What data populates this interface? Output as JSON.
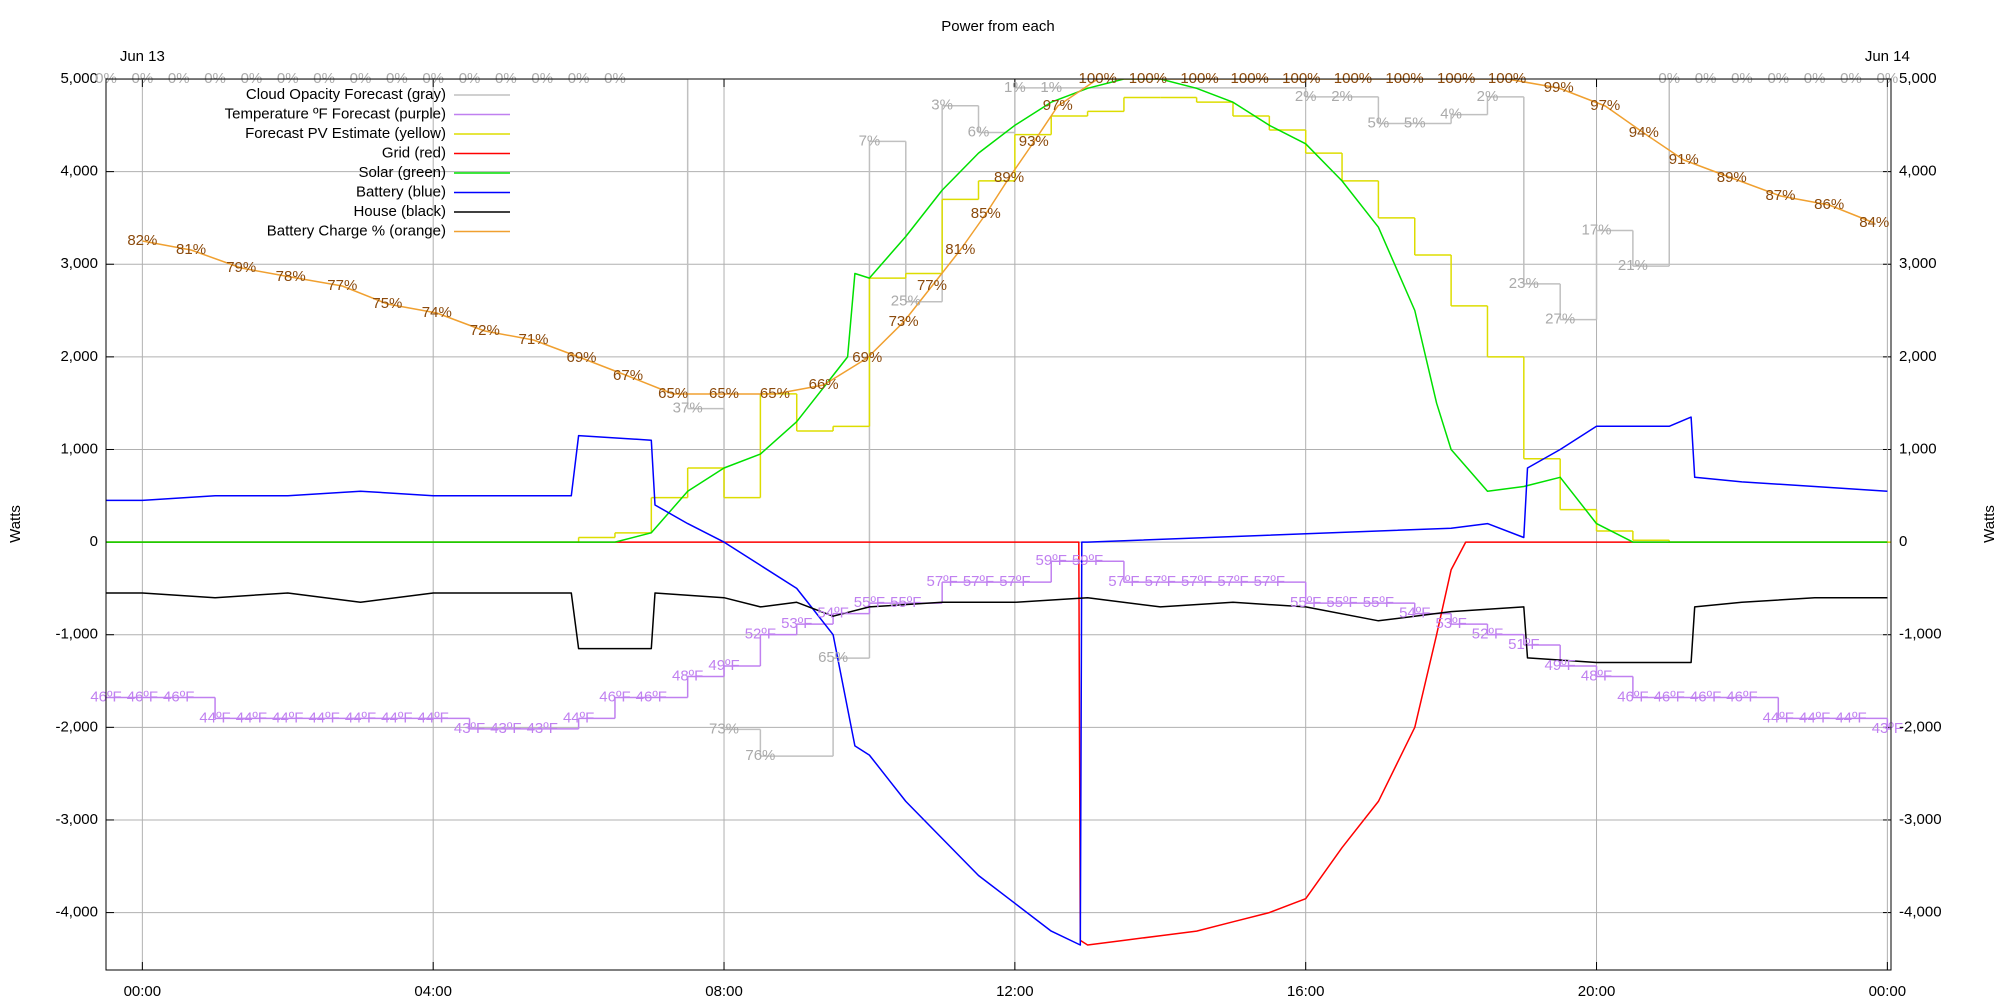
{
  "chart_data": {
    "type": "line",
    "title": "Power from each",
    "y_label": "Watts",
    "y2_label": "Watts",
    "xlim": [
      -0.5,
      24.05
    ],
    "ylim": [
      -4620,
      5000
    ],
    "xticks": [
      {
        "value": 0,
        "label": "00:00"
      },
      {
        "value": 4,
        "label": "04:00"
      },
      {
        "value": 8,
        "label": "08:00"
      },
      {
        "value": 12,
        "label": "12:00"
      },
      {
        "value": 16,
        "label": "16:00"
      },
      {
        "value": 20,
        "label": "20:00"
      },
      {
        "value": 24,
        "label": "00:00"
      }
    ],
    "yticks": [
      {
        "value": -4000,
        "label": "-4,000"
      },
      {
        "value": -3000,
        "label": "-3,000"
      },
      {
        "value": -2000,
        "label": "-2,000"
      },
      {
        "value": -1000,
        "label": "-1,000"
      },
      0,
      {
        "value": 1000,
        "label": "1,000"
      },
      {
        "value": 2000,
        "label": "2,000"
      },
      {
        "value": 3000,
        "label": "3,000"
      },
      {
        "value": 4000,
        "label": "4,000"
      },
      {
        "value": 5000,
        "label": "5,000"
      }
    ],
    "grid": true,
    "legend": "upper left",
    "annotations": [
      {
        "text": "Jun 13",
        "x": 0
      },
      {
        "text": "Jun 14",
        "x": 24
      }
    ],
    "series": [
      {
        "name": "Cloud Opacity Forecast (gray)",
        "color": "#c0c0c0",
        "label_color": "#aaaaaa",
        "step": true,
        "ylim": [
          100,
          0
        ],
        "x": [
          -0.5,
          0,
          0.5,
          1,
          1.5,
          2,
          2.5,
          3,
          3.5,
          4,
          4.5,
          5,
          5.5,
          6,
          6.5,
          7.5,
          8,
          8.5,
          9.5,
          10,
          10.5,
          11,
          11.5,
          12,
          12.5,
          16,
          16.5,
          17,
          17.5,
          18,
          18.5,
          19,
          19.5,
          20,
          20.5,
          21,
          21.5,
          22,
          22.5,
          23,
          23.5,
          24
        ],
        "values": [
          0,
          0,
          0,
          0,
          0,
          0,
          0,
          0,
          0,
          0,
          0,
          0,
          0,
          0,
          0,
          37,
          73,
          76,
          65,
          7,
          25,
          3,
          6,
          1,
          1,
          2,
          2,
          5,
          5,
          4,
          2,
          23,
          27,
          17,
          21,
          0,
          0,
          0,
          0,
          0,
          0,
          0
        ],
        "value_labels": [
          "0%",
          "0%",
          "0%",
          "0%",
          "0%",
          "0%",
          "0%",
          "0%",
          "0%",
          "0%",
          "0%",
          "0%",
          "0%",
          "0%",
          "0%",
          "37%",
          "73%",
          "76%",
          "65%",
          "7%",
          "25%",
          "3%",
          "6%",
          "1%",
          "1%",
          "2%",
          "2%",
          "5%",
          "5%",
          "4%",
          "2%",
          "23%",
          "27%",
          "17%",
          "21%",
          "0%",
          "0%",
          "0%",
          "0%",
          "0%",
          "0%",
          "0%"
        ]
      },
      {
        "name": "Temperature ºF Forecast (purple)",
        "color": "#c080f0",
        "label_color": "#c080f0",
        "step": true,
        "ylim": [
          20,
          105
        ],
        "x": [
          -0.5,
          0,
          0.5,
          1,
          1.5,
          2,
          2.5,
          3,
          3.5,
          4,
          4.5,
          5,
          5.5,
          6,
          6.5,
          7,
          7.5,
          8,
          8.5,
          9,
          9.5,
          10,
          10.5,
          11,
          11.5,
          12,
          12.5,
          13,
          13.5,
          14,
          14.5,
          15,
          15.5,
          16,
          16.5,
          17,
          17.5,
          18,
          18.5,
          19,
          19.5,
          20,
          20.5,
          21,
          21.5,
          22,
          22.5,
          23,
          23.5,
          24
        ],
        "values": [
          46,
          46,
          46,
          44,
          44,
          44,
          44,
          44,
          44,
          44,
          43,
          43,
          43,
          44,
          46,
          46,
          48,
          49,
          52,
          53,
          54,
          55,
          55,
          57,
          57,
          57,
          59,
          59,
          57,
          57,
          57,
          57,
          57,
          55,
          55,
          55,
          54,
          53,
          52,
          51,
          49,
          48,
          46,
          46,
          46,
          46,
          44,
          44,
          44,
          43
        ],
        "value_labels": [
          "46ºF",
          "46ºF",
          "46ºF",
          "44ºF",
          "44ºF",
          "44ºF",
          "44ºF",
          "44ºF",
          "44ºF",
          "44ºF",
          "43ºF",
          "43ºF",
          "43ºF",
          "44ºF",
          "46ºF",
          "46ºF",
          "48ºF",
          "49ºF",
          "52ºF",
          "53ºF",
          "54ºF",
          "55ºF",
          "55ºF",
          "57ºF",
          "57ºF",
          "57ºF",
          "59ºF",
          "59ºF",
          "57ºF",
          "57ºF",
          "57ºF",
          "57ºF",
          "57ºF",
          "55ºF",
          "55ºF",
          "55ºF",
          "54ºF",
          "53ºF",
          "52ºF",
          "51ºF",
          "49ºF",
          "48ºF",
          "46ºF",
          "46ºF",
          "46ºF",
          "46ºF",
          "44ºF",
          "44ºF",
          "44ºF",
          "43ºF"
        ]
      },
      {
        "name": "Forecast PV Estimate (yellow)",
        "color": "#dddd00",
        "step": true,
        "x": [
          -0.5,
          6,
          6.5,
          7,
          7.5,
          8,
          8.5,
          9,
          9.5,
          10,
          10.5,
          11,
          11.5,
          12,
          12.5,
          13,
          13.5,
          14,
          14.5,
          15,
          15.5,
          16,
          16.5,
          17,
          17.5,
          18,
          18.5,
          19,
          19.5,
          20,
          20.5,
          21
        ],
        "values": [
          0,
          50,
          100,
          480,
          800,
          480,
          1600,
          1200,
          1250,
          2850,
          2900,
          3700,
          3900,
          4400,
          4600,
          4650,
          4800,
          4800,
          4750,
          4600,
          4450,
          4200,
          3900,
          3500,
          3100,
          2550,
          2000,
          900,
          350,
          120,
          20,
          0
        ]
      },
      {
        "name": "Grid (red)",
        "color": "#ff0000",
        "x": [
          -0.5,
          12.88,
          12.9,
          13,
          13.5,
          14,
          14.5,
          15,
          15.5,
          16,
          16.5,
          17,
          17.5,
          17.8,
          18,
          18.2,
          24
        ],
        "values": [
          0,
          0,
          -4300,
          -4350,
          -4300,
          -4250,
          -4200,
          -4100,
          -4000,
          -3850,
          -3300,
          -2800,
          -2000,
          -1000,
          -300,
          0,
          0
        ]
      },
      {
        "name": "Solar (green)",
        "color": "#00e000",
        "x": [
          -0.5,
          6.5,
          7,
          7.5,
          8,
          8.5,
          9,
          9.5,
          9.7,
          9.8,
          10,
          10.5,
          11,
          11.5,
          12,
          12.5,
          13,
          13.5,
          14,
          14.5,
          15,
          15.5,
          16,
          16.5,
          17,
          17.5,
          17.8,
          18,
          18.5,
          19,
          19.5,
          20,
          20.5,
          24
        ],
        "values": [
          0,
          0,
          100,
          550,
          800,
          950,
          1300,
          1800,
          2000,
          2900,
          2850,
          3300,
          3800,
          4200,
          4500,
          4750,
          4900,
          5000,
          5000,
          4900,
          4750,
          4500,
          4300,
          3900,
          3400,
          2500,
          1500,
          1000,
          550,
          600,
          700,
          200,
          0,
          0
        ]
      },
      {
        "name": "Battery (blue)",
        "color": "#0000ff",
        "x": [
          -0.5,
          0,
          1,
          2,
          3,
          4,
          5,
          5.9,
          6,
          7,
          7.05,
          7.5,
          8,
          8.5,
          9,
          9.2,
          9.5,
          9.8,
          10,
          10.5,
          11,
          11.5,
          12,
          12.5,
          12.9,
          12.92,
          13,
          18,
          18.5,
          19,
          19.05,
          19.5,
          20,
          20.5,
          21,
          21.3,
          21.35,
          22,
          23,
          24
        ],
        "values": [
          450,
          450,
          500,
          500,
          550,
          500,
          500,
          500,
          1150,
          1100,
          400,
          200,
          0,
          -250,
          -500,
          -700,
          -1000,
          -2200,
          -2300,
          -2800,
          -3200,
          -3600,
          -3900,
          -4200,
          -4350,
          0,
          0,
          150,
          200,
          50,
          800,
          1000,
          1250,
          1250,
          1250,
          1350,
          700,
          650,
          600,
          550
        ]
      },
      {
        "name": "House (black)",
        "color": "#000000",
        "x": [
          -0.5,
          0,
          1,
          2,
          3,
          4,
          5,
          5.9,
          6,
          7,
          7.05,
          8,
          8.5,
          9,
          9.5,
          10,
          11,
          12,
          13,
          14,
          15,
          16,
          17,
          18,
          19,
          19.05,
          20,
          21,
          21.3,
          21.35,
          22,
          23,
          24
        ],
        "values": [
          -550,
          -550,
          -600,
          -550,
          -650,
          -550,
          -550,
          -550,
          -1150,
          -1150,
          -550,
          -600,
          -700,
          -650,
          -800,
          -700,
          -650,
          -650,
          -600,
          -700,
          -650,
          -700,
          -850,
          -750,
          -700,
          -1250,
          -1300,
          -1300,
          -1300,
          -700,
          -650,
          -600,
          -600
        ]
      },
      {
        "name": "Battery Charge % (orange)",
        "color": "#f0a030",
        "label_color": "#8b4a0c",
        "ylim": [
          1,
          100
        ],
        "x": [
          0,
          0.67,
          1.36,
          2.04,
          2.75,
          3.37,
          4.05,
          4.71,
          5.38,
          6.04,
          6.68,
          7.3,
          8.0,
          8.7,
          9.37,
          9.97,
          10.47,
          10.86,
          11.25,
          11.6,
          11.92,
          12.26,
          12.59,
          13.14,
          13.83,
          14.54,
          15.23,
          15.94,
          16.65,
          17.36,
          18.07,
          18.77,
          19.48,
          20.12,
          20.65,
          21.2,
          21.86,
          22.53,
          23.2,
          23.82
        ],
        "values": [
          82,
          81,
          79,
          78,
          77,
          75,
          74,
          72,
          71,
          69,
          67,
          65,
          65,
          65,
          66,
          69,
          73,
          77,
          81,
          85,
          89,
          93,
          97,
          100,
          100,
          100,
          100,
          100,
          100,
          100,
          100,
          100,
          99,
          97,
          94,
          91,
          89,
          87,
          86,
          84
        ],
        "value_labels": [
          "82%",
          "81%",
          "79%",
          "78%",
          "77%",
          "75%",
          "74%",
          "72%",
          "71%",
          "69%",
          "67%",
          "65%",
          "65%",
          "65%",
          "66%",
          "69%",
          "73%",
          "77%",
          "81%",
          "85%",
          "89%",
          "93%",
          "97%",
          "100%",
          "100%",
          "100%",
          "100%",
          "100%",
          "100%",
          "100%",
          "100%",
          "100%",
          "99%",
          "97%",
          "94%",
          "91%",
          "89%",
          "87%",
          "86%",
          "84%"
        ]
      }
    ]
  }
}
